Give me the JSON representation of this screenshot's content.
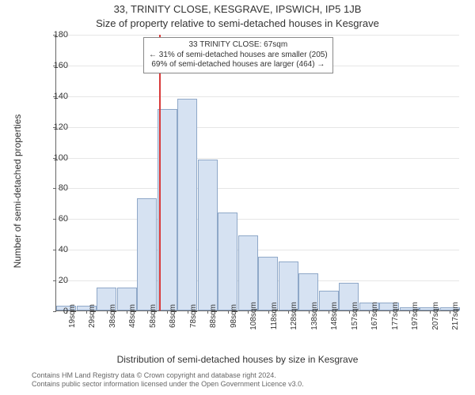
{
  "titles": {
    "line1": "33, TRINITY CLOSE, KESGRAVE, IPSWICH, IP5 1JB",
    "line2": "Size of property relative to semi-detached houses in Kesgrave"
  },
  "chart": {
    "type": "histogram",
    "ylabel": "Number of semi-detached properties",
    "xlabel": "Distribution of semi-detached houses by size in Kesgrave",
    "ylim": [
      0,
      180
    ],
    "ytick_step": 20,
    "yticks": [
      0,
      20,
      40,
      60,
      80,
      100,
      120,
      140,
      160,
      180
    ],
    "x_categories": [
      "19sqm",
      "29sqm",
      "38sqm",
      "48sqm",
      "58sqm",
      "68sqm",
      "78sqm",
      "88sqm",
      "98sqm",
      "108sqm",
      "118sqm",
      "128sqm",
      "138sqm",
      "148sqm",
      "157sqm",
      "167sqm",
      "177sqm",
      "197sqm",
      "207sqm",
      "217sqm"
    ],
    "bar_values": [
      3,
      3,
      15,
      15,
      73,
      131,
      138,
      98,
      64,
      49,
      35,
      32,
      24,
      13,
      18,
      5,
      5,
      2,
      2,
      2
    ],
    "bar_fill": "#d6e2f2",
    "bar_stroke": "#8fa8c8",
    "grid_color": "#e6e6e6",
    "axis_color": "#666666",
    "bg_color": "#ffffff",
    "font": "Arial",
    "label_fontsize": 12,
    "tick_fontsize": 11,
    "xtick_fontsize": 10
  },
  "marker": {
    "x_sqm": 67,
    "color": "#d83a3a",
    "annotation": {
      "line1": "33 TRINITY CLOSE: 67sqm",
      "line2": "← 31% of semi-detached houses are smaller (205)",
      "line3": "69% of semi-detached houses are larger (464) →"
    }
  },
  "credits": {
    "line1": "Contains HM Land Registry data © Crown copyright and database right 2024.",
    "line2": "Contains public sector information licensed under the Open Government Licence v3.0."
  }
}
